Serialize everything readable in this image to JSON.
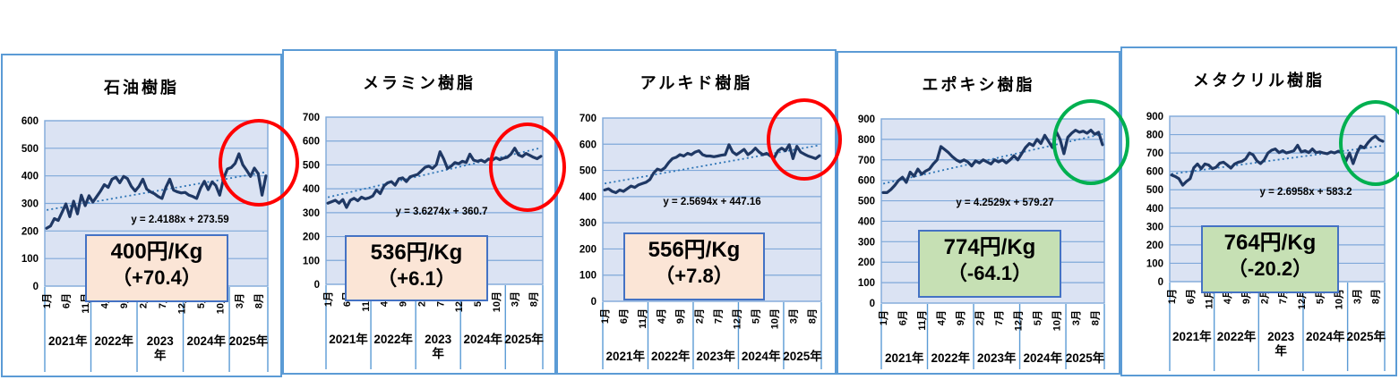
{
  "colors": {
    "panel_border": "#5B9BD5",
    "plot_fill": "#DBE3F3",
    "grid": "#7FA8D9",
    "series_line": "#1F3864",
    "trend_line": "#2E75B6",
    "equation_text": "#17375E",
    "box_border": "#4472C4",
    "peach_box": "#FBE5D6",
    "green_box": "#C6E0B4",
    "red_circle": "#FF0000",
    "green_circle": "#00B050"
  },
  "chart_data": [
    {
      "type": "line",
      "title": "石油樹脂",
      "ylim": [
        0,
        600
      ],
      "y_ticks": [
        600,
        500,
        400,
        300,
        200,
        100,
        0
      ],
      "x_tick_labels": [
        "1月",
        "6月",
        "11月",
        "4月",
        "9月",
        "2月",
        "7月",
        "12月",
        "5月",
        "10月",
        "3月",
        "8月"
      ],
      "year_labels": [
        "2021年",
        "2022年",
        "2023\n年",
        "2024年",
        "2025年"
      ],
      "values": [
        210,
        218,
        245,
        238,
        268,
        298,
        252,
        308,
        262,
        330,
        292,
        328,
        305,
        325,
        345,
        368,
        358,
        388,
        395,
        375,
        398,
        390,
        362,
        345,
        362,
        388,
        352,
        342,
        335,
        325,
        318,
        358,
        388,
        348,
        342,
        338,
        340,
        330,
        325,
        318,
        355,
        380,
        350,
        378,
        365,
        330,
        390,
        425,
        430,
        445,
        480,
        440,
        420,
        398,
        428,
        408,
        330,
        400
      ],
      "trendline": {
        "equation": "y = 2.4188x + 273.59",
        "slope": 2.4188,
        "intercept": 273.59
      },
      "callout": {
        "price": "400円/Kg",
        "change": "（+70.4）",
        "bg": "#FBE5D6"
      },
      "circle_color": "#FF0000"
    },
    {
      "type": "line",
      "title": "メラミン樹脂",
      "ylim": [
        0,
        700
      ],
      "y_ticks": [
        700,
        600,
        500,
        400,
        300,
        200,
        100,
        0
      ],
      "x_tick_labels": [
        "1月",
        "6月",
        "11月",
        "4月",
        "9月",
        "2月",
        "7月",
        "12月",
        "5月",
        "10月",
        "3月",
        "8月"
      ],
      "year_labels": [
        "2021年",
        "2022年",
        "2023\n年",
        "2024年",
        "2025年"
      ],
      "values": [
        340,
        346,
        352,
        340,
        355,
        322,
        352,
        360,
        350,
        365,
        358,
        362,
        370,
        395,
        380,
        412,
        425,
        430,
        415,
        442,
        446,
        430,
        450,
        455,
        460,
        475,
        490,
        495,
        485,
        500,
        555,
        525,
        485,
        495,
        510,
        505,
        515,
        510,
        545,
        520,
        515,
        520,
        512,
        525,
        520,
        530,
        522,
        528,
        532,
        545,
        570,
        542,
        535,
        548,
        540,
        532,
        526,
        536
      ],
      "trendline": {
        "equation": "y = 3.6274x + 360.7",
        "slope": 3.6274,
        "intercept": 360.7
      },
      "callout": {
        "price": "536円/Kg",
        "change": "（+6.1）",
        "bg": "#FBE5D6"
      },
      "circle_color": "#FF0000"
    },
    {
      "type": "line",
      "title": "アルキド樹脂",
      "ylim": [
        0,
        700
      ],
      "y_ticks": [
        700,
        600,
        500,
        400,
        300,
        200,
        100,
        0
      ],
      "x_tick_labels": [
        "1月",
        "6月",
        "11月",
        "4月",
        "9月",
        "2月",
        "7月",
        "12月",
        "5月",
        "10月",
        "3月",
        "8月"
      ],
      "year_labels": [
        "2021年",
        "2022年",
        "2023年",
        "2024年",
        "2025年"
      ],
      "values": [
        425,
        430,
        420,
        415,
        425,
        420,
        430,
        440,
        435,
        445,
        450,
        455,
        465,
        490,
        505,
        500,
        510,
        530,
        545,
        550,
        560,
        555,
        565,
        560,
        570,
        575,
        560,
        555,
        555,
        552,
        555,
        558,
        560,
        598,
        570,
        560,
        570,
        580,
        560,
        570,
        585,
        570,
        560,
        565,
        555,
        548,
        575,
        585,
        575,
        598,
        545,
        592,
        570,
        562,
        555,
        550,
        545,
        556
      ],
      "trendline": {
        "equation": "y = 2.5694x + 447.16",
        "slope": 2.5694,
        "intercept": 447.16
      },
      "callout": {
        "price": "556円/Kg",
        "change": "（+7.8）",
        "bg": "#FBE5D6"
      },
      "circle_color": "#FF0000"
    },
    {
      "type": "line",
      "title": "エポキシ樹脂",
      "ylim": [
        0,
        900
      ],
      "y_ticks": [
        900,
        800,
        700,
        600,
        500,
        400,
        300,
        200,
        100,
        0
      ],
      "x_tick_labels": [
        "1月",
        "6月",
        "11月",
        "4月",
        "9月",
        "2月",
        "7月",
        "12月",
        "5月",
        "10月",
        "3月",
        "8月"
      ],
      "year_labels": [
        "2021年",
        "2022年",
        "2023年",
        "2024年",
        "2025年"
      ],
      "values": [
        540,
        540,
        555,
        575,
        600,
        615,
        590,
        640,
        620,
        655,
        630,
        645,
        655,
        680,
        700,
        765,
        750,
        735,
        715,
        700,
        690,
        700,
        690,
        670,
        695,
        685,
        700,
        690,
        680,
        700,
        690,
        700,
        685,
        700,
        720,
        700,
        730,
        760,
        780,
        770,
        800,
        780,
        820,
        790,
        760,
        838,
        800,
        730,
        810,
        830,
        845,
        835,
        840,
        830,
        845,
        825,
        835,
        774
      ],
      "trendline": {
        "equation": "y = 4.2529x + 579.27",
        "slope": 4.2529,
        "intercept": 579.27
      },
      "callout": {
        "price": "774円/Kg",
        "change": "（-64.1）",
        "bg": "#C6E0B4"
      },
      "circle_color": "#00B050"
    },
    {
      "type": "line",
      "title": "メタクリル樹脂",
      "ylim": [
        0,
        900
      ],
      "y_ticks": [
        900,
        800,
        700,
        600,
        500,
        400,
        300,
        200,
        100,
        0
      ],
      "x_tick_labels": [
        "1月",
        "6月",
        "11月",
        "4月",
        "9月",
        "2月",
        "7月",
        "12月",
        "5月",
        "10月",
        "3月",
        "8月"
      ],
      "year_labels": [
        "2021年",
        "2022年",
        "2023\n年",
        "2024年",
        "2025年"
      ],
      "values": [
        580,
        572,
        560,
        525,
        545,
        560,
        620,
        640,
        615,
        640,
        635,
        615,
        622,
        645,
        650,
        635,
        618,
        640,
        650,
        655,
        668,
        700,
        690,
        658,
        642,
        662,
        700,
        715,
        722,
        702,
        712,
        700,
        706,
        712,
        742,
        706,
        712,
        702,
        722,
        702,
        706,
        700,
        696,
        706,
        700,
        710,
        700,
        655,
        700,
        642,
        700,
        738,
        728,
        756,
        778,
        792,
        772,
        764
      ],
      "trendline": {
        "equation": "y = 2.6958x + 583.2",
        "slope": 2.6958,
        "intercept": 583.2
      },
      "callout": {
        "price": "764円/Kg",
        "change": "（-20.2）",
        "bg": "#C6E0B4"
      },
      "circle_color": "#00B050"
    }
  ]
}
